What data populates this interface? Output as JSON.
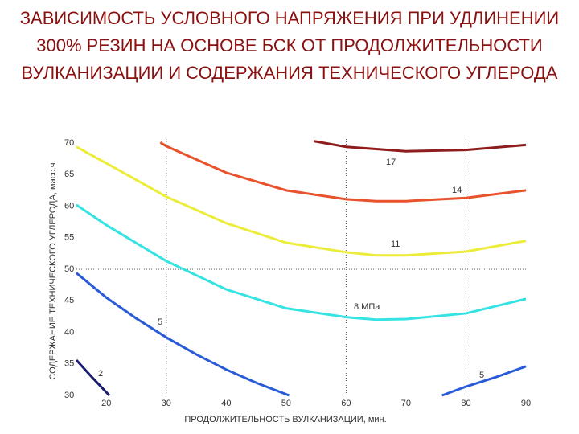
{
  "chart_data": {
    "type": "line",
    "title": "ЗАВИСИМОСТЬ УСЛОВНОГО НАПРЯЖЕНИЯ ПРИ УДЛИНЕНИИ 300% РЕЗИН НА ОСНОВЕ БСК ОТ ПРОДОЛЖИТЕЛЬНОСТИ ВУЛКАНИЗАЦИИ И СОДЕРЖАНИЯ ТЕХНИЧЕСКОГО УГЛЕРОДА",
    "x_label": "ПРОДОЛЖИТЕЛЬНОСТЬ ВУЛКАНИЗАЦИИ, мин.",
    "y_label": "СОДЕРЖАНИЕ ТЕХНИЧЕСКОГО УГЛЕРОДА, масс.ч.",
    "xlim": [
      15,
      90
    ],
    "ylim": [
      30,
      70
    ],
    "xticks": [
      20,
      30,
      40,
      50,
      60,
      70,
      80,
      90
    ],
    "yticks": [
      30,
      35,
      40,
      45,
      50,
      55,
      60,
      65,
      70
    ],
    "reference_x": [
      30,
      60,
      80
    ],
    "reference_y": [
      50
    ],
    "series": [
      {
        "name": "2",
        "color": "#1c1c6e",
        "x": [
          15,
          17.5,
          20.5
        ],
        "values": [
          35.6,
          33,
          30
        ]
      },
      {
        "name": "5",
        "color": "#2a5bd7",
        "x": [
          15,
          20,
          25,
          30,
          35,
          40,
          45,
          50.5
        ],
        "values": [
          49.4,
          45.5,
          42.2,
          39.2,
          36.5,
          34.1,
          32,
          30
        ]
      },
      {
        "name": "5",
        "color": "#2a5bd7",
        "x": [
          76,
          80,
          85,
          90
        ],
        "values": [
          30,
          31.4,
          32.9,
          34.6
        ]
      },
      {
        "name": "8 МПа",
        "color": "#36e3e3",
        "x": [
          15,
          20,
          30,
          40,
          50,
          60,
          65,
          70,
          80,
          90
        ],
        "values": [
          60.2,
          57,
          51.3,
          46.8,
          43.8,
          42.4,
          42,
          42.1,
          43,
          45.3
        ]
      },
      {
        "name": "11",
        "color": "#ecec3a",
        "x": [
          15,
          20,
          30,
          40,
          50,
          60,
          65,
          70,
          80,
          90
        ],
        "values": [
          69.4,
          66.8,
          61.5,
          57.3,
          54.2,
          52.7,
          52.2,
          52.2,
          52.8,
          54.5
        ]
      },
      {
        "name": "14",
        "color": "#e8522c",
        "x": [
          29,
          30,
          40,
          50,
          60,
          65,
          70,
          80,
          90
        ],
        "values": [
          70.1,
          69.5,
          65.3,
          62.5,
          61.1,
          60.8,
          60.8,
          61.3,
          62.5
        ]
      },
      {
        "name": "17",
        "color": "#8e1c1c",
        "x": [
          54.6,
          60,
          70,
          80,
          90
        ],
        "values": [
          70.3,
          69.4,
          68.7,
          68.9,
          69.7
        ]
      }
    ]
  }
}
